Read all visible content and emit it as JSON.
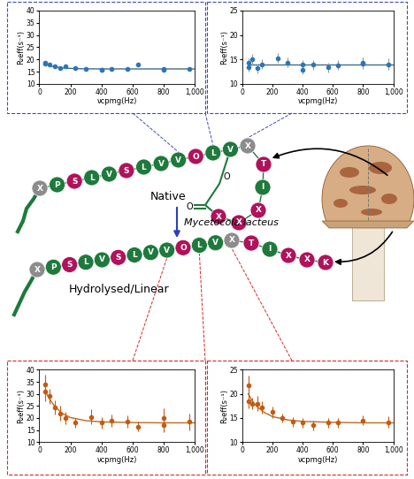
{
  "chart_data": [
    {
      "type": "scatter",
      "xlabel": "νcpmg(Hz)",
      "ylabel": "R₂eff(s⁻¹)",
      "xlim": [
        0,
        1000
      ],
      "xticks": [
        0,
        200,
        400,
        600,
        800,
        {
          "value": 1000,
          "label": "1,000"
        }
      ],
      "ylim": [
        10,
        40
      ],
      "yticks": [
        10,
        15,
        20,
        25,
        30,
        35,
        40
      ],
      "series": [
        {
          "type": "scatter",
          "color": "#2e75b6",
          "marker": "circle",
          "x": [
            40,
            40,
            67,
            100,
            133,
            167,
            233,
            300,
            400,
            400,
            467,
            567,
            633,
            800,
            800,
            967
          ],
          "values": [
            18.7,
            18.3,
            17.8,
            17.2,
            16.3,
            17.3,
            16.4,
            16.0,
            15.8,
            15.6,
            16.1,
            16.2,
            17.9,
            16.0,
            15.7,
            16.2
          ]
        },
        {
          "type": "line",
          "color": "#3f6e8c",
          "x": [
            40,
            60,
            80,
            100,
            150,
            200,
            300,
            400,
            600,
            800,
            1000
          ],
          "values": [
            18.2,
            17.6,
            17.2,
            16.9,
            16.5,
            16.3,
            16.15,
            16.1,
            16.1,
            16.1,
            16.1
          ]
        }
      ]
    },
    {
      "type": "scatter",
      "xlabel": "νcpmg(Hz)",
      "ylabel": "R₂eff(s⁻¹)",
      "xlim": [
        0,
        1000
      ],
      "xticks": [
        0,
        200,
        400,
        600,
        800,
        {
          "value": 1000,
          "label": "1,000"
        }
      ],
      "ylim": [
        10,
        25
      ],
      "yticks": [
        10,
        15,
        20,
        25
      ],
      "series": [
        {
          "type": "scatter",
          "color": "#2e75b6",
          "marker": "circle",
          "x": [
            40,
            40,
            67,
            100,
            133,
            233,
            300,
            400,
            400,
            467,
            567,
            633,
            800,
            800,
            967
          ],
          "values": [
            14.3,
            13.5,
            15.0,
            13.2,
            14.0,
            15.3,
            14.4,
            13.9,
            12.9,
            13.9,
            13.4,
            13.8,
            14.2,
            14.4,
            14.0
          ],
          "errors": [
            1.0,
            1.0,
            1.2,
            1.0,
            1.0,
            1.0,
            1.0,
            1.0,
            1.0,
            1.0,
            1.0,
            1.0,
            1.2,
            1.0,
            1.2
          ]
        },
        {
          "type": "line",
          "color": "#3f6e8c",
          "x": [
            40,
            200,
            400,
            600,
            800,
            1000
          ],
          "values": [
            14.0,
            14.0,
            14.0,
            14.0,
            14.0,
            14.0
          ]
        }
      ]
    },
    {
      "type": "scatter",
      "xlabel": "νcpmg(Hz)",
      "ylabel": "R₂eff(s⁻¹)",
      "xlim": [
        0,
        1000
      ],
      "xticks": [
        0,
        200,
        400,
        600,
        800,
        {
          "value": 1000,
          "label": "1,000"
        }
      ],
      "ylim": [
        10,
        40
      ],
      "yticks": [
        10,
        15,
        20,
        25,
        30,
        35,
        40
      ],
      "series": [
        {
          "type": "scatter",
          "color": "#c55a11",
          "marker": "circle",
          "x": [
            40,
            40,
            67,
            100,
            133,
            167,
            233,
            333,
            400,
            467,
            567,
            633,
            800,
            800,
            967
          ],
          "values": [
            34.0,
            31.0,
            29.0,
            24.5,
            22.0,
            20.0,
            18.0,
            20.5,
            18.0,
            19.0,
            18.5,
            16.5,
            20.0,
            17.0,
            18.5
          ],
          "errors": [
            4.0,
            4.0,
            3.0,
            3.0,
            3.0,
            2.5,
            2.0,
            3.0,
            2.5,
            2.5,
            2.5,
            2.0,
            4.0,
            3.0,
            3.5
          ]
        },
        {
          "type": "line",
          "color": "#c0691d",
          "x": [
            40,
            60,
            80,
            100,
            150,
            200,
            300,
            400,
            600,
            800,
            1000
          ],
          "values": [
            31.0,
            28.5,
            26.5,
            24.8,
            21.8,
            20.2,
            18.9,
            18.4,
            18.1,
            18.0,
            18.0
          ]
        }
      ]
    },
    {
      "type": "scatter",
      "xlabel": "νcpmg(Hz)",
      "ylabel": "R₂eff(s⁻¹)",
      "xlim": [
        0,
        1000
      ],
      "xticks": [
        0,
        200,
        400,
        600,
        800,
        {
          "value": 1000,
          "label": "1,000"
        }
      ],
      "ylim": [
        10,
        25
      ],
      "yticks": [
        10,
        15,
        20,
        25
      ],
      "series": [
        {
          "type": "scatter",
          "color": "#c55a11",
          "marker": "circle",
          "x": [
            40,
            40,
            67,
            100,
            133,
            200,
            267,
            333,
            400,
            467,
            567,
            633,
            800,
            967
          ],
          "values": [
            21.8,
            18.5,
            18.0,
            18.0,
            17.2,
            16.2,
            15.0,
            14.2,
            14.0,
            13.5,
            14.0,
            14.0,
            14.5,
            14.1
          ],
          "errors": [
            2.0,
            1.5,
            1.2,
            1.5,
            1.2,
            1.2,
            1.0,
            1.0,
            1.0,
            1.0,
            1.0,
            1.0,
            1.0,
            1.2
          ]
        },
        {
          "type": "line",
          "color": "#c0691d",
          "x": [
            40,
            60,
            80,
            100,
            150,
            200,
            300,
            400,
            600,
            800,
            1000
          ],
          "values": [
            20.0,
            18.9,
            18.0,
            17.3,
            16.1,
            15.3,
            14.6,
            14.3,
            14.1,
            14.0,
            14.0
          ]
        }
      ]
    }
  ],
  "diagram": {
    "native": {
      "label": "Native",
      "chain": [
        "X",
        "P",
        "S",
        "L",
        "V",
        "S",
        "L",
        "V",
        "V",
        "O",
        "L",
        "V",
        "X"
      ],
      "chain_colors": [
        "#8c8c8c",
        "#1e7a3c",
        "#b0125b",
        "#1e7a3c",
        "#1e7a3c",
        "#b0125b",
        "#1e7a3c",
        "#1e7a3c",
        "#1e7a3c",
        "#b0125b",
        "#1e7a3c",
        "#1e7a3c",
        "#8c8c8c"
      ],
      "ring": [
        "T",
        "I",
        "X",
        "X",
        "X"
      ],
      "ring_colors": [
        "#b0125b",
        "#1e7a3c",
        "#b0125b",
        "#b0125b",
        "#b0125b"
      ],
      "linkage": [
        "O",
        "O"
      ]
    },
    "enzyme": "Mycetocola lacteus",
    "hydrolysed": {
      "label": "Hydrolysed/Linear",
      "chain": [
        "X",
        "P",
        "S",
        "L",
        "V",
        "S",
        "L",
        "V",
        "V",
        "O",
        "L",
        "V",
        "X",
        "T",
        "I",
        "X",
        "X",
        "K"
      ],
      "chain_colors": [
        "#8c8c8c",
        "#1e7a3c",
        "#b0125b",
        "#1e7a3c",
        "#1e7a3c",
        "#b0125b",
        "#1e7a3c",
        "#1e7a3c",
        "#1e7a3c",
        "#b0125b",
        "#1e7a3c",
        "#1e7a3c",
        "#8c8c8c",
        "#b0125b",
        "#1e7a3c",
        "#b0125b",
        "#b0125b",
        "#b0125b"
      ]
    }
  }
}
